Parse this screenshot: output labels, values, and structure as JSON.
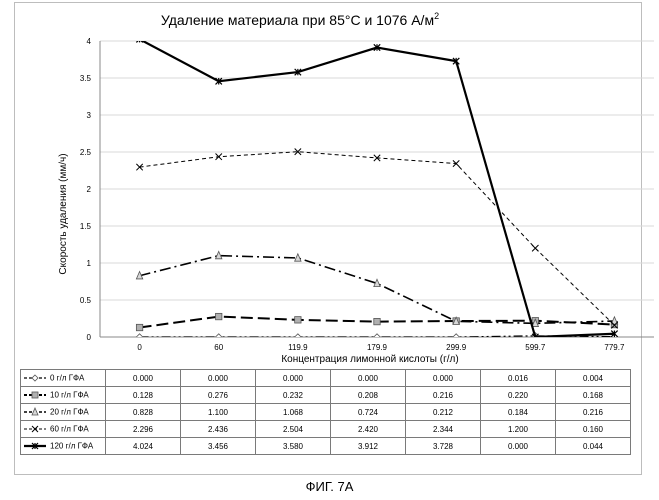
{
  "chart_data": {
    "type": "line",
    "title": "Удаление материала при 85°C и 1076 А/м",
    "title_superscript": "2",
    "xlabel": "Концентрация лимонной кислоты (г/л)",
    "ylabel": "Скорость удаления (мм/ч)",
    "categories": [
      "0",
      "60",
      "119.9",
      "179.9",
      "299.9",
      "599.7",
      "779.7"
    ],
    "ylim": [
      0,
      4
    ],
    "yticks": [
      "0",
      "0.5",
      "1",
      "1.5",
      "2",
      "2.5",
      "3",
      "3.5",
      "4"
    ],
    "grid": "horizontal",
    "legend_placement": "data-table",
    "series": [
      {
        "name": "0 г/л ГФА",
        "values": [
          0.0,
          0.0,
          0.0,
          0.0,
          0.0,
          0.016,
          0.004
        ],
        "labels": [
          "0.000",
          "0.000",
          "0.000",
          "0.000",
          "0.000",
          "0.016",
          "0.004"
        ],
        "marker": "diamond",
        "dash": "dash-dot-dot"
      },
      {
        "name": "10 г/л ГФА",
        "values": [
          0.128,
          0.276,
          0.232,
          0.208,
          0.216,
          0.22,
          0.168
        ],
        "labels": [
          "0.128",
          "0.276",
          "0.232",
          "0.208",
          "0.216",
          "0.220",
          "0.168"
        ],
        "marker": "square",
        "dash": "long-dash"
      },
      {
        "name": "20 г/л ГФА",
        "values": [
          0.828,
          1.1,
          1.068,
          0.724,
          0.212,
          0.184,
          0.216
        ],
        "labels": [
          "0.828",
          "1.100",
          "1.068",
          "0.724",
          "0.212",
          "0.184",
          "0.216"
        ],
        "marker": "triangle",
        "dash": "dash-dot"
      },
      {
        "name": "60 г/л ГФА",
        "values": [
          2.296,
          2.436,
          2.504,
          2.42,
          2.344,
          1.2,
          0.16
        ],
        "labels": [
          "2.296",
          "2.436",
          "2.504",
          "2.420",
          "2.344",
          "1.200",
          "0.160"
        ],
        "marker": "x",
        "dash": "dash"
      },
      {
        "name": "120 г/л ГФА",
        "values": [
          4.024,
          3.456,
          3.58,
          3.912,
          3.728,
          0.0,
          0.044
        ],
        "labels": [
          "4.024",
          "3.456",
          "3.580",
          "3.912",
          "3.728",
          "0.000",
          "0.044"
        ],
        "marker": "star",
        "dash": "solid"
      }
    ]
  },
  "caption": "ФИГ. 7А"
}
